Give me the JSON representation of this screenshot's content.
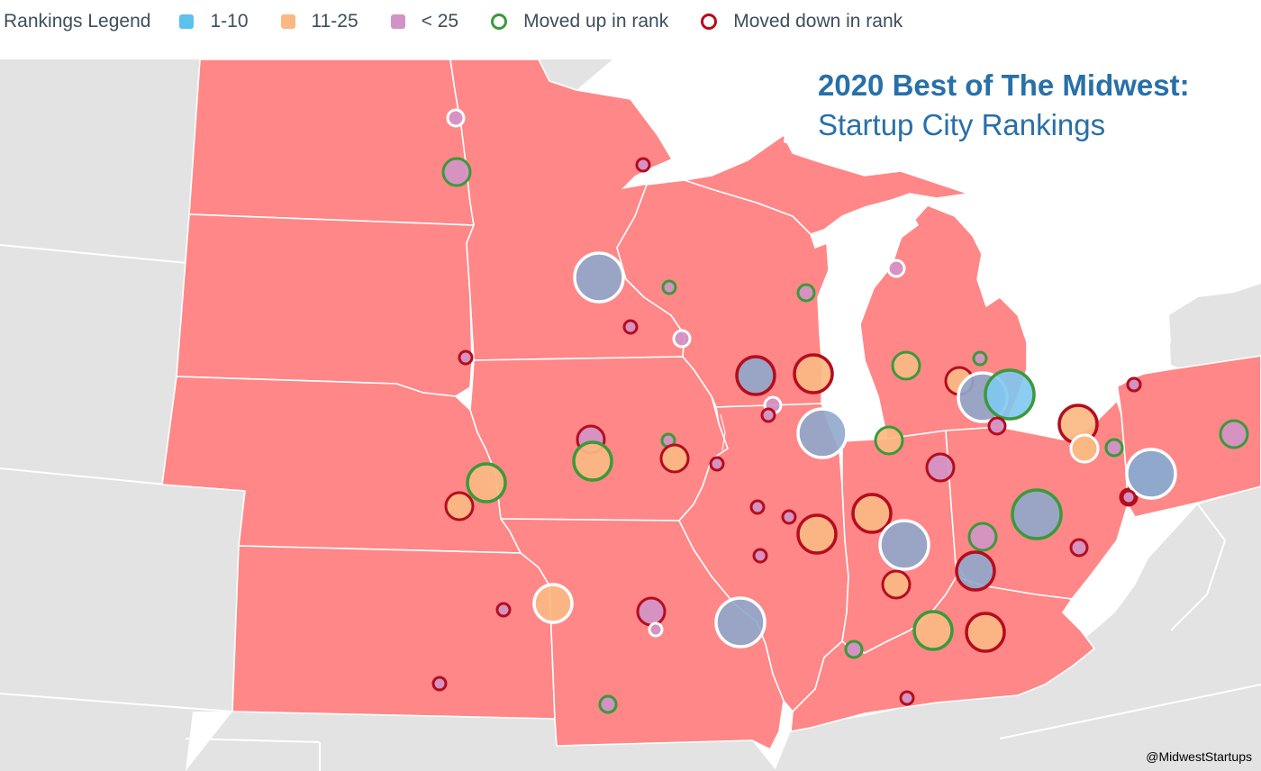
{
  "legend": {
    "title": "Rankings Legend",
    "items": [
      {
        "label": "1-10",
        "kind": "square",
        "color": "#5bc2ec"
      },
      {
        "label": "11-25",
        "kind": "square",
        "color": "#fbb883"
      },
      {
        "label": "< 25",
        "kind": "square",
        "color": "#d392c5"
      },
      {
        "label": "Moved up in rank",
        "kind": "ring",
        "color": "#3a9a3a"
      },
      {
        "label": "Moved down in rank",
        "kind": "ring",
        "color": "#b40d1e"
      }
    ]
  },
  "heading": {
    "title": "2020 Best of The Midwest:",
    "subtitle": "Startup City Rankings"
  },
  "credit": "@MidwestStartups",
  "colors": {
    "land_highlight": "#ff8787",
    "land_other": "#e3e3e3",
    "water": "#ffffff",
    "tier_top10": "#8fa8cc",
    "tier_top10_light": "#80c8ef",
    "tier_11_25": "#fbb883",
    "tier_over25": "#d392c5",
    "ring_up": "#3a9a3a",
    "ring_down": "#b40d1e",
    "ring_neutral": "#ffffff"
  },
  "markers": [
    {
      "tier": "over25",
      "move": "none",
      "size": "s"
    },
    {
      "tier": "over25",
      "move": "up",
      "size": "m"
    },
    {
      "tier": "over25",
      "move": "down",
      "size": "xs"
    },
    {
      "tier": "top10",
      "move": "none",
      "size": "xl"
    },
    {
      "tier": "over25",
      "move": "up",
      "size": "xs"
    },
    {
      "tier": "over25",
      "move": "down",
      "size": "xs"
    },
    {
      "tier": "over25",
      "move": "none",
      "size": "s"
    },
    {
      "tier": "over25",
      "move": "up",
      "size": "s"
    },
    {
      "tier": "over25",
      "move": "none",
      "size": "s"
    },
    {
      "tier": "over25",
      "move": "down",
      "size": "xs"
    },
    {
      "tier": "top10",
      "move": "down",
      "size": "l"
    },
    {
      "tier": "t11_25",
      "move": "down",
      "size": "l"
    },
    {
      "tier": "over25",
      "move": "none",
      "size": "s"
    },
    {
      "tier": "over25",
      "move": "down",
      "size": "xs"
    },
    {
      "tier": "top10",
      "move": "none",
      "size": "xl"
    },
    {
      "tier": "t11_25",
      "move": "up",
      "size": "m"
    },
    {
      "tier": "over25",
      "move": "up",
      "size": "xs"
    },
    {
      "tier": "t11_25",
      "move": "down",
      "size": "m"
    },
    {
      "tier": "top10",
      "move": "none",
      "size": "xl"
    },
    {
      "tier": "top10light",
      "move": "up",
      "size": "xl"
    },
    {
      "tier": "over25",
      "move": "down",
      "size": "s"
    },
    {
      "tier": "over25",
      "move": "down",
      "size": "xs"
    },
    {
      "tier": "t11_25",
      "move": "down",
      "size": "l"
    },
    {
      "tier": "t11_25",
      "move": "none",
      "size": "m"
    },
    {
      "tier": "over25",
      "move": "up",
      "size": "s"
    },
    {
      "tier": "over25",
      "move": "up",
      "size": "m"
    },
    {
      "tier": "t11_25",
      "move": "up",
      "size": "m"
    },
    {
      "tier": "over25",
      "move": "down",
      "size": "m"
    },
    {
      "tier": "t11_25",
      "move": "up",
      "size": "l"
    },
    {
      "tier": "over25",
      "move": "up",
      "size": "xs"
    },
    {
      "tier": "over25",
      "move": "down",
      "size": "m"
    },
    {
      "tier": "over25",
      "move": "down",
      "size": "xs"
    },
    {
      "tier": "t11_25",
      "move": "up",
      "size": "l"
    },
    {
      "tier": "t11_25",
      "move": "down",
      "size": "m"
    },
    {
      "tier": "over25",
      "move": "down",
      "size": "xs"
    },
    {
      "tier": "over25",
      "move": "down",
      "size": "xs"
    },
    {
      "tier": "t11_25",
      "move": "down",
      "size": "l"
    },
    {
      "tier": "over25",
      "move": "down",
      "size": "xs"
    },
    {
      "tier": "t11_25",
      "move": "down",
      "size": "l"
    },
    {
      "tier": "top10",
      "move": "none",
      "size": "xl"
    },
    {
      "tier": "t11_25",
      "move": "down",
      "size": "m"
    },
    {
      "tier": "over25",
      "move": "up",
      "size": "m"
    },
    {
      "tier": "top10",
      "move": "up",
      "size": "xl"
    },
    {
      "tier": "over25",
      "move": "down",
      "size": "s"
    },
    {
      "tier": "top10",
      "move": "down",
      "size": "l"
    },
    {
      "tier": "over25",
      "move": "down",
      "size": "s"
    },
    {
      "tier": "top10",
      "move": "none",
      "size": "xl"
    },
    {
      "tier": "over25",
      "move": "down",
      "size": "xs"
    },
    {
      "tier": "over25",
      "move": "up",
      "size": "s"
    },
    {
      "tier": "t11_25",
      "move": "none",
      "size": "l"
    },
    {
      "tier": "over25",
      "move": "down",
      "size": "xs"
    },
    {
      "tier": "over25",
      "move": "down",
      "size": "m"
    },
    {
      "tier": "over25",
      "move": "none",
      "size": "xs"
    },
    {
      "tier": "top10",
      "move": "none",
      "size": "xl"
    },
    {
      "tier": "over25",
      "move": "up",
      "size": "s"
    },
    {
      "tier": "t11_25",
      "move": "up",
      "size": "l"
    },
    {
      "tier": "t11_25",
      "move": "down",
      "size": "m"
    },
    {
      "tier": "over25",
      "move": "down",
      "size": "xs"
    },
    {
      "tier": "over25",
      "move": "up",
      "size": "s"
    },
    {
      "tier": "t11_25",
      "move": "down",
      "size": "l"
    },
    {
      "tier": "t11_25",
      "move": "none",
      "size": "m"
    },
    {
      "tier": "over25",
      "move": "up",
      "size": "s"
    },
    {
      "tier": "top10",
      "move": "none",
      "size": "xl"
    },
    {
      "tier": "over25",
      "move": "down",
      "size": "xs"
    },
    {
      "tier": "over25",
      "move": "down",
      "size": "xs"
    },
    {
      "tier": "over25",
      "move": "up",
      "size": "s"
    }
  ]
}
